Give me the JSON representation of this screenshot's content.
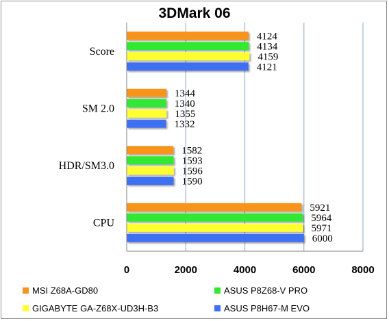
{
  "chart_data": {
    "type": "bar",
    "orientation": "horizontal",
    "title": "3DMark 06",
    "categories": [
      "Score",
      "SM 2.0",
      "HDR/SM3.0",
      "CPU"
    ],
    "series": [
      {
        "name": "MSI Z68A-GD80",
        "color": "#f7941d",
        "values": [
          4124,
          1344,
          1582,
          5921
        ]
      },
      {
        "name": "ASUS P8Z68-V PRO",
        "color": "#33e833",
        "values": [
          4134,
          1340,
          1593,
          5964
        ]
      },
      {
        "name": "GIGABYTE GA-Z68X-UD3H-B3",
        "color": "#ffff33",
        "values": [
          4159,
          1355,
          1596,
          5971
        ]
      },
      {
        "name": "ASUS P8H67-M EVO",
        "color": "#3f6ff2",
        "values": [
          4121,
          1332,
          1590,
          6000
        ]
      }
    ],
    "xlim": [
      0,
      8000
    ],
    "xticks": [
      "0",
      "2000",
      "4000",
      "6000",
      "8000"
    ],
    "grid": true,
    "legend_position": "bottom"
  }
}
